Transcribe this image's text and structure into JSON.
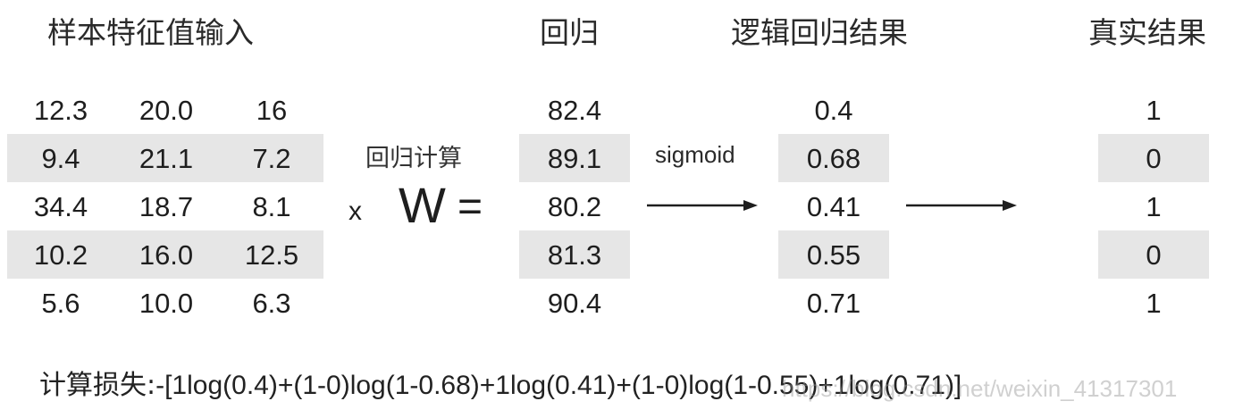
{
  "headers": {
    "input": "样本特征值输入",
    "regression": "回归",
    "logistic": "逻辑回归结果",
    "truth": "真实结果"
  },
  "features": [
    [
      "12.3",
      "20.0",
      "16"
    ],
    [
      "9.4",
      "21.1",
      "7.2"
    ],
    [
      "34.4",
      "18.7",
      "8.1"
    ],
    [
      "10.2",
      "16.0",
      "12.5"
    ],
    [
      "5.6",
      "10.0",
      "6.3"
    ]
  ],
  "operator": {
    "label": "回归计算",
    "times": "x",
    "weight": "W",
    "equals": "="
  },
  "regression_values": [
    "82.4",
    "89.1",
    "80.2",
    "81.3",
    "90.4"
  ],
  "sigmoid_label": "sigmoid",
  "logistic_values": [
    "0.4",
    "0.68",
    "0.41",
    "0.55",
    "0.71"
  ],
  "truth_values": [
    "1",
    "0",
    "1",
    "0",
    "1"
  ],
  "loss": {
    "prefix": "计算损失:",
    "expression": "-[1log(0.4)+(1-0)log(1-0.68)+1log(0.41)+(1-0)log(1-0.55)+1log(0.71)]"
  },
  "watermark": "https://blog.csdn.net/weixin_41317301",
  "colors": {
    "band": "#e6e6e6",
    "text": "#1e1e1e"
  }
}
